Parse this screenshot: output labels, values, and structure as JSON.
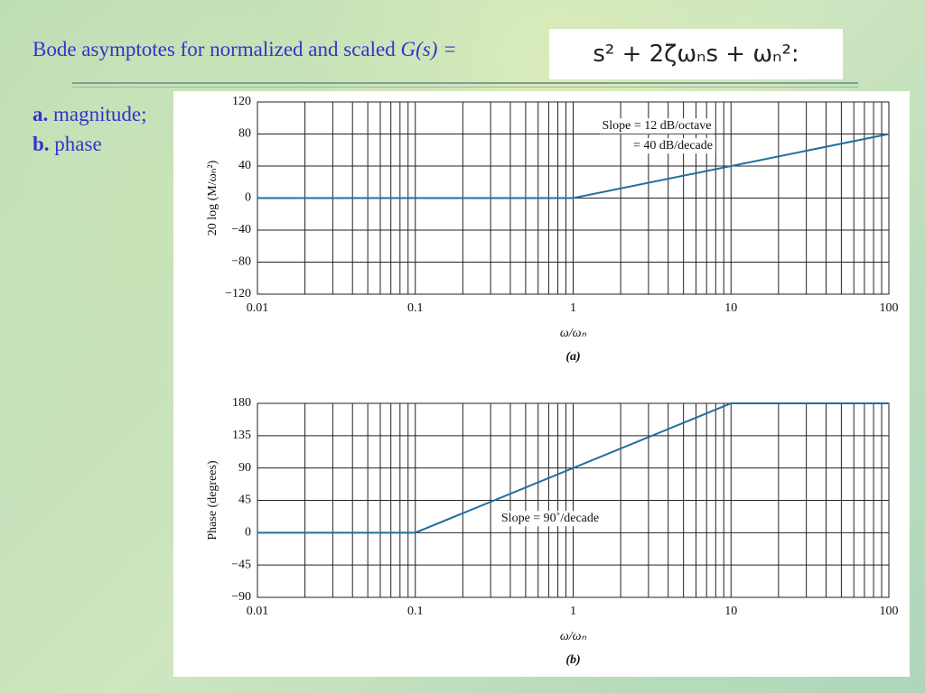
{
  "header": {
    "title": "Bode asymptotes for normalized and scaled",
    "function": "G(s) =",
    "formula": "s² + 2ζωₙs + ωₙ²:"
  },
  "items": [
    {
      "letter": "a.",
      "text": "magnitude;"
    },
    {
      "letter": "b.",
      "text": "phase"
    }
  ],
  "chart_data": [
    {
      "type": "line",
      "ylabel": "20 log (M/ωₙ²)",
      "xlabel": "ω/ωₙ",
      "caption": "(a)",
      "log_x": true,
      "grid": true,
      "xlim": [
        0.01,
        100
      ],
      "xticks": [
        0.01,
        0.1,
        1,
        10,
        100
      ],
      "ylim": [
        -120,
        120
      ],
      "yticks": [
        120,
        80,
        40,
        0,
        {
          "value": -40,
          "label": "−40"
        },
        {
          "value": -80,
          "label": "−80"
        },
        {
          "value": -120,
          "label": "−120"
        }
      ],
      "series": [
        {
          "x": [
            0.01,
            1,
            100
          ],
          "values": [
            0,
            0,
            80
          ],
          "color": "#1f6f9f"
        }
      ],
      "annotations": [
        "Slope = 12 dB/octave",
        "= 40 dB/decade"
      ]
    },
    {
      "type": "line",
      "ylabel": "Phase (degrees)",
      "xlabel": "ω/ωₙ",
      "caption": "(b)",
      "log_x": true,
      "grid": true,
      "xlim": [
        0.01,
        100
      ],
      "xticks": [
        0.01,
        0.1,
        1,
        10,
        100
      ],
      "ylim": [
        -90,
        180
      ],
      "yticks": [
        180,
        135,
        90,
        45,
        0,
        {
          "value": -45,
          "label": "−45"
        },
        {
          "value": -90,
          "label": "−90"
        }
      ],
      "series": [
        {
          "x": [
            0.01,
            0.1,
            10,
            100
          ],
          "values": [
            0,
            0,
            180,
            180
          ],
          "color": "#1f6f9f"
        }
      ],
      "annotations": [
        "Slope = 90˚/decade"
      ]
    }
  ]
}
